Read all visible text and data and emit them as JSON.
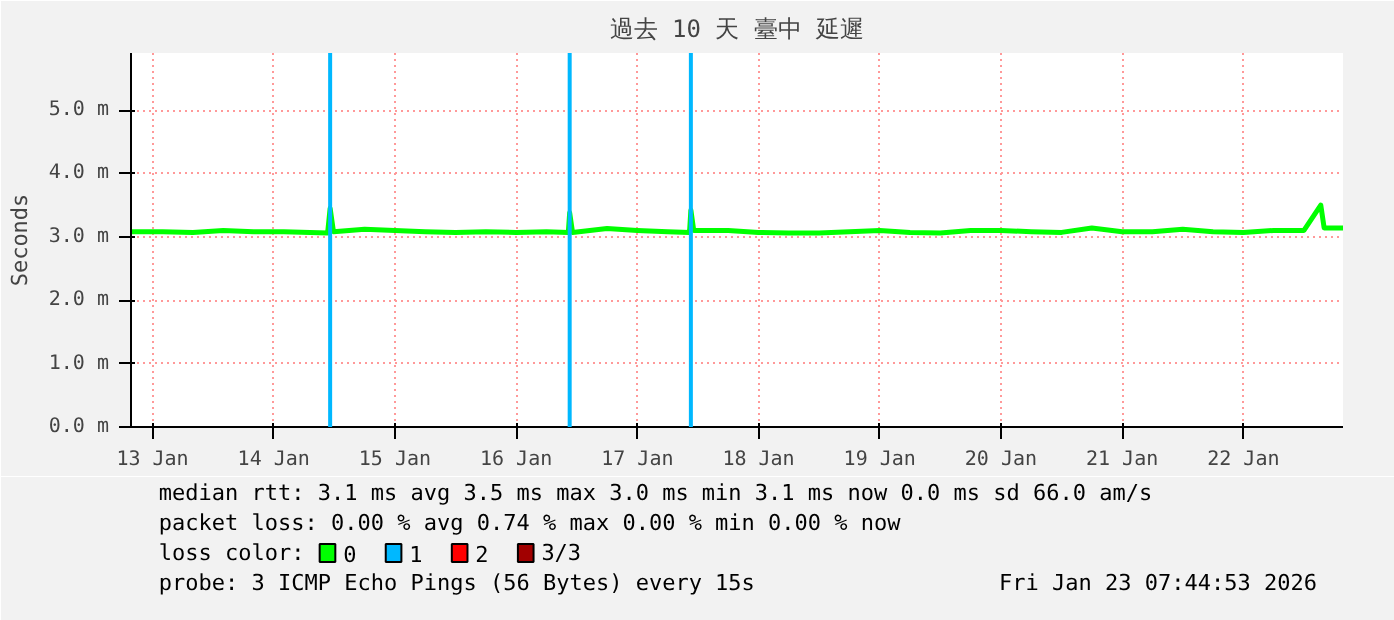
{
  "chart_data": {
    "type": "line",
    "title": "過去 10 天 臺中 延遲",
    "ylabel": "Seconds",
    "x": [
      "2026-01-13T07:44",
      "2026-01-13T14:00",
      "2026-01-13T20:00",
      "2026-01-14T02:00",
      "2026-01-14T08:00",
      "2026-01-14T14:00",
      "2026-01-14T22:40",
      "2026-01-14T23:10",
      "2026-01-14T23:50",
      "2026-01-15T06:00",
      "2026-01-15T12:00",
      "2026-01-15T18:00",
      "2026-01-16T00:00",
      "2026-01-16T06:00",
      "2026-01-16T12:00",
      "2026-01-16T18:00",
      "2026-01-16T22:20",
      "2026-01-16T22:36",
      "2026-01-16T23:10",
      "2026-01-17T06:00",
      "2026-01-17T12:00",
      "2026-01-17T18:00",
      "2026-01-17T22:20",
      "2026-01-17T22:36",
      "2026-01-17T23:10",
      "2026-01-18T06:00",
      "2026-01-18T12:00",
      "2026-01-18T18:00",
      "2026-01-19T00:00",
      "2026-01-19T06:00",
      "2026-01-19T12:00",
      "2026-01-19T18:00",
      "2026-01-20T00:00",
      "2026-01-20T06:00",
      "2026-01-20T12:00",
      "2026-01-20T18:00",
      "2026-01-21T00:00",
      "2026-01-21T06:00",
      "2026-01-21T12:00",
      "2026-01-21T18:00",
      "2026-01-22T00:00",
      "2026-01-22T06:00",
      "2026-01-22T12:00",
      "2026-01-22T18:00",
      "2026-01-23T00:00",
      "2026-01-23T03:20",
      "2026-01-23T04:00",
      "2026-01-23T07:44"
    ],
    "series": [
      {
        "name": "0",
        "color": "#00ff00",
        "values": [
          3.08,
          3.08,
          3.07,
          3.1,
          3.08,
          3.08,
          3.06,
          3.45,
          3.08,
          3.12,
          3.1,
          3.08,
          3.07,
          3.08,
          3.07,
          3.08,
          3.07,
          3.38,
          3.07,
          3.13,
          3.1,
          3.08,
          3.07,
          3.42,
          3.1,
          3.1,
          3.07,
          3.06,
          3.06,
          3.08,
          3.1,
          3.07,
          3.06,
          3.1,
          3.1,
          3.08,
          3.07,
          3.14,
          3.08,
          3.08,
          3.12,
          3.08,
          3.07,
          3.1,
          3.1,
          3.5,
          3.14,
          3.14
        ]
      },
      {
        "name": "1",
        "color": "#00b8ff",
        "values": [
          null,
          null,
          null,
          null,
          null,
          null,
          null,
          null,
          null,
          null,
          null,
          null,
          null,
          null,
          null,
          null,
          null,
          null,
          null,
          null,
          null,
          null,
          null,
          null,
          null,
          null,
          null,
          null,
          null,
          null,
          null,
          null,
          null,
          null,
          null,
          null,
          null,
          null,
          null,
          null,
          null,
          null,
          null,
          null,
          null,
          null,
          null,
          null
        ]
      },
      {
        "name": "2",
        "color": "#ff0000",
        "values": [
          null,
          null,
          null,
          null,
          null,
          null,
          null,
          null,
          null,
          null,
          null,
          null,
          null,
          null,
          null,
          null,
          null,
          null,
          null,
          null,
          null,
          null,
          null,
          null,
          null,
          null,
          null,
          null,
          null,
          null,
          null,
          null,
          null,
          null,
          null,
          null,
          null,
          null,
          null,
          null,
          null,
          null,
          null,
          null,
          null,
          null,
          null,
          null
        ]
      },
      {
        "name": "3/3",
        "color": "#a10000",
        "values": [
          null,
          null,
          null,
          null,
          null,
          null,
          null,
          null,
          null,
          null,
          null,
          null,
          null,
          null,
          null,
          null,
          null,
          null,
          null,
          null,
          null,
          null,
          null,
          null,
          null,
          null,
          null,
          null,
          null,
          null,
          null,
          null,
          null,
          null,
          null,
          null,
          null,
          null,
          null,
          null,
          null,
          null,
          null,
          null,
          null,
          null,
          null,
          null
        ]
      }
    ],
    "legend": "bottom",
    "legend_title": "loss color:",
    "ref_lines": [
      {
        "axis": "x",
        "value": "2026-01-14T23:10",
        "color": "#00b8ff"
      },
      {
        "axis": "x",
        "value": "2026-01-16T22:36",
        "color": "#00b8ff"
      },
      {
        "axis": "x",
        "value": "2026-01-17T22:36",
        "color": "#00b8ff"
      }
    ],
    "xlim": [
      "2026-01-13T07:44",
      "2026-01-23T07:44"
    ],
    "xticks": [
      {
        "value": "2026-01-13T12:00",
        "label": "13 Jan"
      },
      {
        "value": "2026-01-14T12:00",
        "label": "14 Jan"
      },
      {
        "value": "2026-01-15T12:00",
        "label": "15 Jan"
      },
      {
        "value": "2026-01-16T12:00",
        "label": "16 Jan"
      },
      {
        "value": "2026-01-17T12:00",
        "label": "17 Jan"
      },
      {
        "value": "2026-01-18T12:00",
        "label": "18 Jan"
      },
      {
        "value": "2026-01-19T12:00",
        "label": "19 Jan"
      },
      {
        "value": "2026-01-20T12:00",
        "label": "20 Jan"
      },
      {
        "value": "2026-01-21T12:00",
        "label": "21 Jan"
      },
      {
        "value": "2026-01-22T12:00",
        "label": "22 Jan"
      }
    ],
    "ylim": [
      0,
      5.9
    ],
    "yticks": [
      {
        "value": 0,
        "label": "0.0 m"
      },
      {
        "value": 1,
        "label": "1.0 m"
      },
      {
        "value": 2,
        "label": "2.0 m"
      },
      {
        "value": 3,
        "label": "3.0 m"
      },
      {
        "value": 4,
        "label": "4.0 m"
      },
      {
        "value": 5,
        "label": "5.0 m"
      }
    ],
    "grid": true,
    "line_style": "solid",
    "marker": "none",
    "annotations": [
      "median rtt:  3.1 ms avg  3.5 ms max  3.0 ms min  3.1 ms now  0.0 ms sd  66.0   am/s",
      "packet loss: 0.00 % avg  0.74 % max  0.00 % min  0.00 % now",
      "probe:       3 ICMP Echo Pings (56 Bytes) every 15s",
      "Fri Jan 23 07:44:53 2026"
    ]
  }
}
